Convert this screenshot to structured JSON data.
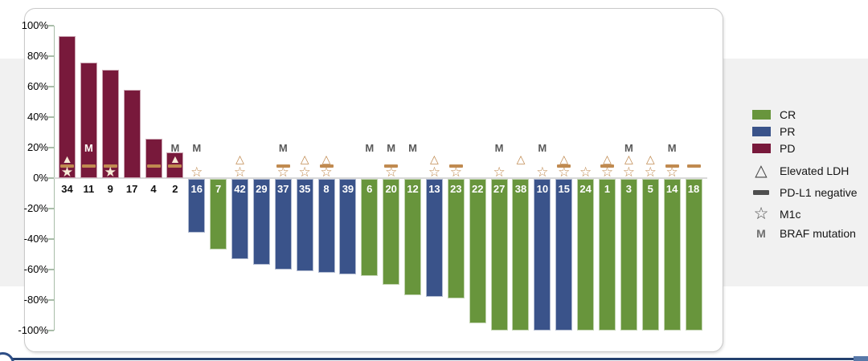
{
  "chart_data": {
    "type": "bar",
    "title": "",
    "y_axis_ticks": [
      "100%",
      "80%",
      "60%",
      "40%",
      "20%",
      "0%",
      "-20%",
      "-40%",
      "-60%",
      "-80%",
      "-100%"
    ],
    "ylim": [
      -100,
      100
    ],
    "grid": "zero-line-only",
    "legend_position": "right",
    "bars": [
      {
        "id": "34",
        "response": "PD",
        "value": 93,
        "markers": [
          "ldh",
          "pdl1",
          "m1c"
        ]
      },
      {
        "id": "11",
        "response": "PD",
        "value": 76,
        "markers": [
          "braf",
          "pdl1"
        ]
      },
      {
        "id": "9",
        "response": "PD",
        "value": 71,
        "markers": [
          "pdl1",
          "m1c"
        ]
      },
      {
        "id": "17",
        "response": "PD",
        "value": 58,
        "markers": []
      },
      {
        "id": "4",
        "response": "PD",
        "value": 26,
        "markers": [
          "pdl1"
        ]
      },
      {
        "id": "2",
        "response": "PD",
        "value": 17,
        "markers": [
          "braf",
          "ldh",
          "pdl1"
        ]
      },
      {
        "id": "16",
        "response": "PR",
        "value": -36,
        "markers": [
          "braf",
          "m1c"
        ]
      },
      {
        "id": "7",
        "response": "CR",
        "value": -47,
        "markers": []
      },
      {
        "id": "42",
        "response": "PR",
        "value": -53,
        "markers": [
          "ldh",
          "m1c"
        ]
      },
      {
        "id": "29",
        "response": "PR",
        "value": -57,
        "markers": []
      },
      {
        "id": "37",
        "response": "PR",
        "value": -60,
        "markers": [
          "braf",
          "pdl1",
          "m1c"
        ]
      },
      {
        "id": "35",
        "response": "PR",
        "value": -61,
        "markers": [
          "ldh",
          "m1c"
        ]
      },
      {
        "id": "8",
        "response": "PR",
        "value": -62,
        "markers": [
          "ldh",
          "pdl1",
          "m1c"
        ]
      },
      {
        "id": "39",
        "response": "PR",
        "value": -63,
        "markers": []
      },
      {
        "id": "6",
        "response": "CR",
        "value": -64,
        "markers": [
          "braf"
        ]
      },
      {
        "id": "20",
        "response": "CR",
        "value": -70,
        "markers": [
          "braf",
          "pdl1",
          "m1c"
        ]
      },
      {
        "id": "12",
        "response": "CR",
        "value": -77,
        "markers": [
          "braf"
        ]
      },
      {
        "id": "13",
        "response": "PR",
        "value": -78,
        "markers": [
          "ldh",
          "m1c"
        ]
      },
      {
        "id": "23",
        "response": "CR",
        "value": -79,
        "markers": [
          "pdl1",
          "m1c"
        ]
      },
      {
        "id": "22",
        "response": "CR",
        "value": -95,
        "markers": []
      },
      {
        "id": "27",
        "response": "CR",
        "value": -100,
        "markers": [
          "braf",
          "m1c"
        ]
      },
      {
        "id": "38",
        "response": "CR",
        "value": -100,
        "markers": [
          "ldh"
        ]
      },
      {
        "id": "10",
        "response": "PR",
        "value": -100,
        "markers": [
          "braf",
          "m1c"
        ]
      },
      {
        "id": "15",
        "response": "PR",
        "value": -100,
        "markers": [
          "ldh",
          "pdl1",
          "m1c"
        ]
      },
      {
        "id": "24",
        "response": "CR",
        "value": -100,
        "markers": [
          "m1c"
        ]
      },
      {
        "id": "1",
        "response": "CR",
        "value": -100,
        "markers": [
          "ldh",
          "pdl1",
          "m1c"
        ]
      },
      {
        "id": "3",
        "response": "CR",
        "value": -100,
        "markers": [
          "braf",
          "ldh",
          "m1c"
        ]
      },
      {
        "id": "5",
        "response": "CR",
        "value": -100,
        "markers": [
          "ldh",
          "m1c"
        ]
      },
      {
        "id": "14",
        "response": "CR",
        "value": -100,
        "markers": [
          "braf",
          "pdl1",
          "m1c"
        ]
      },
      {
        "id": "18",
        "response": "CR",
        "value": -100,
        "markers": [
          "pdl1"
        ]
      }
    ]
  },
  "legend": {
    "responses": [
      {
        "label": "CR",
        "color": "#68953c"
      },
      {
        "label": "PR",
        "color": "#3a538a"
      },
      {
        "label": "PD",
        "color": "#78193b"
      }
    ],
    "markers": [
      {
        "id": "ldh",
        "label": "Elevated LDH",
        "icon": "triangle-outline"
      },
      {
        "id": "pdl1",
        "label": "PD-L1 negative",
        "icon": "dash"
      },
      {
        "id": "m1c",
        "label": "M1c",
        "icon": "star-outline"
      },
      {
        "id": "braf",
        "label": "BRAF mutation",
        "icon": "letter-M"
      }
    ]
  },
  "icons": {
    "ldh": "△",
    "ldh_filled": "▲",
    "m1c": "☆",
    "m1c_filled": "★",
    "braf": "M"
  },
  "colors": {
    "response": {
      "CR": "#68953c",
      "PR": "#3a538a",
      "PD": "#78193b"
    },
    "marker_tan": "#c08a50",
    "marker_fill": "#f6ecd7",
    "braf_gray": "#595959",
    "braf_inverse": "#fdfbf6",
    "axis": "#a9bda9",
    "zero_line": "#d9d9d9",
    "band": "#f1f1f1",
    "legend_icon_gray": "#4f4f4f",
    "navy_accent": "#24406e"
  }
}
